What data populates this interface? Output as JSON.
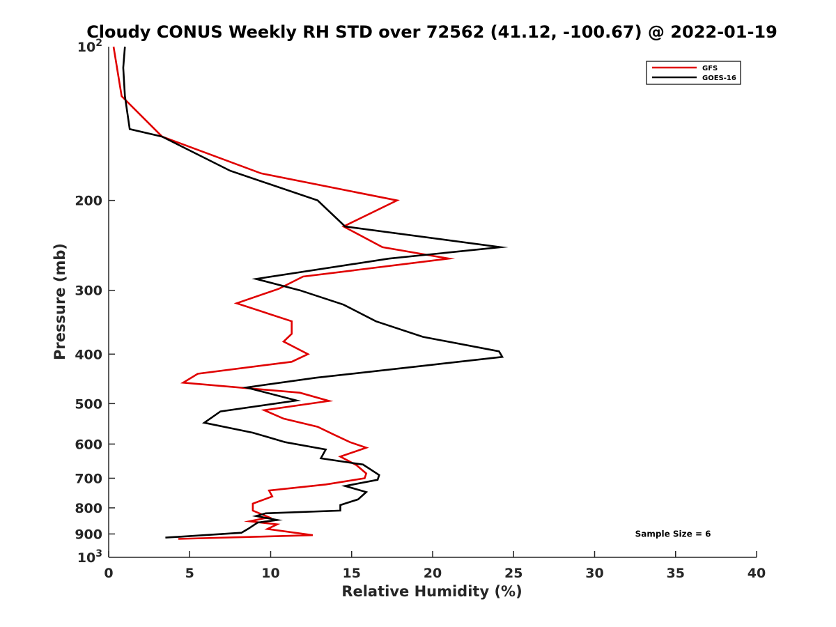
{
  "chart_data": {
    "type": "line",
    "title": "Cloudy CONUS Weekly RH STD over 72562 (41.12, -100.67) @ 2022-01-19",
    "xlabel": "Relative Humidity (%)",
    "ylabel": "Pressure (mb)",
    "xlim": [
      0,
      40
    ],
    "ylim": [
      100,
      1000
    ],
    "y_scale": "log",
    "y_reversed": true,
    "x_ticks": [
      0,
      5,
      10,
      15,
      20,
      25,
      30,
      35,
      40
    ],
    "y_ticks": [
      {
        "value": 200,
        "base": "200",
        "exp": ""
      },
      {
        "value": 300,
        "base": "300",
        "exp": ""
      },
      {
        "value": 400,
        "base": "400",
        "exp": ""
      },
      {
        "value": 500,
        "base": "500",
        "exp": ""
      },
      {
        "value": 600,
        "base": "600",
        "exp": ""
      },
      {
        "value": 700,
        "base": "700",
        "exp": ""
      },
      {
        "value": 800,
        "base": "800",
        "exp": ""
      },
      {
        "value": 900,
        "base": "900",
        "exp": ""
      }
    ],
    "y_bounds": [
      {
        "value": 100,
        "base": "10",
        "exp": "2"
      },
      {
        "value": 1000,
        "base": "10",
        "exp": "3"
      }
    ],
    "legend_position": "top-right",
    "series": [
      {
        "name": "GFS",
        "color": "#e00000",
        "points": [
          [
            0.3,
            100
          ],
          [
            0.8,
            125
          ],
          [
            3.3,
            150
          ],
          [
            9.4,
            177
          ],
          [
            17.8,
            200
          ],
          [
            14.5,
            225
          ],
          [
            16.9,
            247
          ],
          [
            21.0,
            260
          ],
          [
            12.0,
            282
          ],
          [
            10.5,
            298
          ],
          [
            7.9,
            318
          ],
          [
            11.3,
            345
          ],
          [
            11.3,
            365
          ],
          [
            10.8,
            378
          ],
          [
            12.3,
            400
          ],
          [
            11.3,
            414
          ],
          [
            5.5,
            437
          ],
          [
            4.6,
            455
          ],
          [
            11.8,
            476
          ],
          [
            13.6,
            494
          ],
          [
            9.6,
            515
          ],
          [
            10.8,
            535
          ],
          [
            12.9,
            555
          ],
          [
            13.9,
            575
          ],
          [
            14.9,
            595
          ],
          [
            15.9,
            610
          ],
          [
            14.3,
            635
          ],
          [
            15.3,
            660
          ],
          [
            15.9,
            685
          ],
          [
            15.8,
            700
          ],
          [
            13.4,
            720
          ],
          [
            9.9,
            740
          ],
          [
            10.1,
            760
          ],
          [
            8.9,
            785
          ],
          [
            8.9,
            810
          ],
          [
            9.9,
            835
          ],
          [
            8.7,
            850
          ],
          [
            10.4,
            862
          ],
          [
            9.8,
            880
          ],
          [
            12.6,
            905
          ],
          [
            4.3,
            920
          ]
        ]
      },
      {
        "name": "GOES-16",
        "color": "#000000",
        "points": [
          [
            1.0,
            100
          ],
          [
            0.9,
            110
          ],
          [
            1.0,
            125
          ],
          [
            1.3,
            145
          ],
          [
            3.3,
            150
          ],
          [
            7.5,
            175
          ],
          [
            12.9,
            200
          ],
          [
            14.6,
            225
          ],
          [
            24.2,
            247
          ],
          [
            17.3,
            260
          ],
          [
            9.1,
            285
          ],
          [
            11.8,
            300
          ],
          [
            14.5,
            320
          ],
          [
            16.5,
            345
          ],
          [
            19.4,
            370
          ],
          [
            24.1,
            395
          ],
          [
            24.3,
            405
          ],
          [
            19.9,
            420
          ],
          [
            12.8,
            445
          ],
          [
            8.5,
            465
          ],
          [
            11.6,
            493
          ],
          [
            6.9,
            518
          ],
          [
            5.9,
            545
          ],
          [
            8.9,
            570
          ],
          [
            10.9,
            595
          ],
          [
            13.4,
            615
          ],
          [
            13.1,
            640
          ],
          [
            15.7,
            658
          ],
          [
            16.7,
            690
          ],
          [
            16.6,
            705
          ],
          [
            14.6,
            725
          ],
          [
            15.9,
            745
          ],
          [
            15.4,
            770
          ],
          [
            14.3,
            790
          ],
          [
            14.3,
            810
          ],
          [
            9.7,
            820
          ],
          [
            9.1,
            830
          ],
          [
            10.4,
            845
          ],
          [
            9.2,
            855
          ],
          [
            8.6,
            880
          ],
          [
            8.2,
            895
          ],
          [
            3.5,
            915
          ]
        ]
      }
    ],
    "annotations": [
      {
        "text": "Sample Size = 6",
        "x": 32.5,
        "y": 900
      }
    ]
  }
}
